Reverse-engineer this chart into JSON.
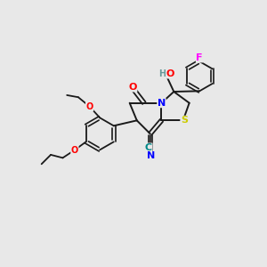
{
  "bg_color": "#e8e8e8",
  "bond_color": "#1a1a1a",
  "atom_colors": {
    "N": "#0000ff",
    "O": "#ff0000",
    "S": "#cccc00",
    "F": "#ff00ff",
    "C_cyan": "#008888",
    "H_gray": "#669999"
  },
  "figsize": [
    3.0,
    3.0
  ],
  "dpi": 100
}
